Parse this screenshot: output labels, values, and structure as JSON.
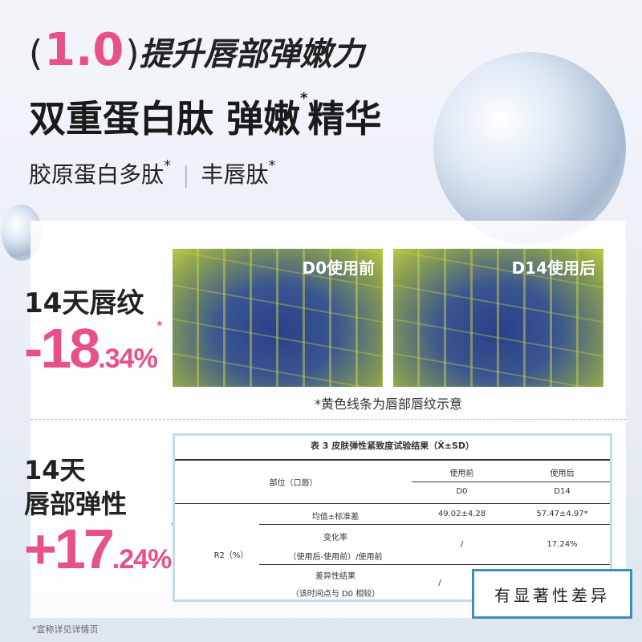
{
  "headline": {
    "open": "(",
    "number": "1.0",
    "close": ")",
    "text": "提升唇部弹嫩力"
  },
  "title": {
    "text": "双重蛋白肽 弹嫩",
    "sup": "*",
    "tail": "精华"
  },
  "ingredients": {
    "a": "胶原蛋白多肽",
    "a_sup": "*",
    "sep": "|",
    "b": "丰唇肽",
    "b_sup": "*"
  },
  "wrinkle": {
    "label": "14天唇纹",
    "sign": "-",
    "main": "18",
    "dec": ".34%",
    "ast": "*"
  },
  "photos": {
    "before": "D0使用前",
    "after": "D14使用后",
    "note": "*黄色线条为唇部唇纹示意"
  },
  "elasticity": {
    "label1": "14天",
    "label2": "唇部弹性",
    "sign": "+",
    "main": "17",
    "dec": ".24%",
    "ast": "*"
  },
  "table": {
    "caption": "表 3 皮肤弹性紧致度试验结果（X̄±SD）",
    "part": "部位（口唇）",
    "before": "使用前",
    "after": "使用后",
    "d0": "D0",
    "d14": "D14",
    "metric": "R2（%）",
    "row1": {
      "label": "均值±标准差",
      "before": "49.02±4.28",
      "after": "57.47±4.97*"
    },
    "row2": {
      "label1": "变化率",
      "label2": "（使用后-使用前）/使用前",
      "before": "/",
      "after": "17.24%"
    },
    "row3": {
      "label1": "差异性结果",
      "label2": "（该时间点与 D0 相较）",
      "before": "/"
    }
  },
  "badge": "有显著性差异",
  "footnote": "*宣称详见详情页"
}
